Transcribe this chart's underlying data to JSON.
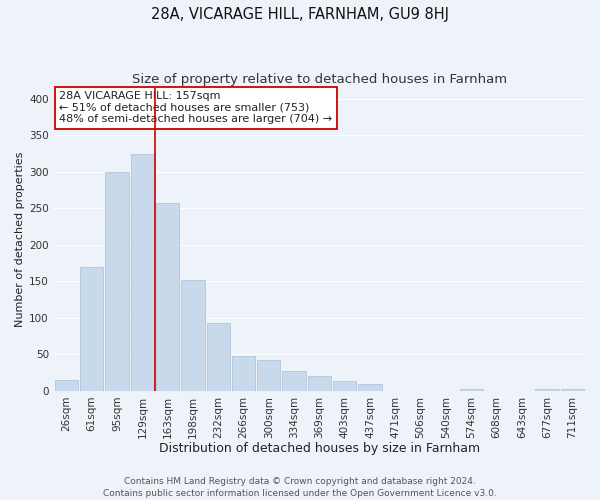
{
  "title": "28A, VICARAGE HILL, FARNHAM, GU9 8HJ",
  "subtitle": "Size of property relative to detached houses in Farnham",
  "xlabel": "Distribution of detached houses by size in Farnham",
  "ylabel": "Number of detached properties",
  "categories": [
    "26sqm",
    "61sqm",
    "95sqm",
    "129sqm",
    "163sqm",
    "198sqm",
    "232sqm",
    "266sqm",
    "300sqm",
    "334sqm",
    "369sqm",
    "403sqm",
    "437sqm",
    "471sqm",
    "506sqm",
    "540sqm",
    "574sqm",
    "608sqm",
    "643sqm",
    "677sqm",
    "711sqm"
  ],
  "values": [
    15,
    170,
    300,
    325,
    257,
    152,
    93,
    48,
    42,
    27,
    20,
    13,
    10,
    0,
    0,
    0,
    3,
    0,
    0,
    3,
    3
  ],
  "bar_color": "#c9d9ec",
  "bar_edge_color": "#aabfd4",
  "vline_color": "#cc0000",
  "vline_position": 3.5,
  "annotation_text": "28A VICARAGE HILL: 157sqm\n← 51% of detached houses are smaller (753)\n48% of semi-detached houses are larger (704) →",
  "annotation_box_color": "#ffffff",
  "annotation_box_edge": "#cc0000",
  "ylim": [
    0,
    415
  ],
  "yticks": [
    0,
    50,
    100,
    150,
    200,
    250,
    300,
    350,
    400
  ],
  "footer1": "Contains HM Land Registry data © Crown copyright and database right 2024.",
  "footer2": "Contains public sector information licensed under the Open Government Licence v3.0.",
  "background_color": "#eef2f9",
  "grid_color": "#ffffff",
  "title_fontsize": 10.5,
  "subtitle_fontsize": 9.5,
  "xlabel_fontsize": 9,
  "ylabel_fontsize": 8,
  "tick_fontsize": 7.5,
  "annotation_fontsize": 8,
  "footer_fontsize": 6.5
}
